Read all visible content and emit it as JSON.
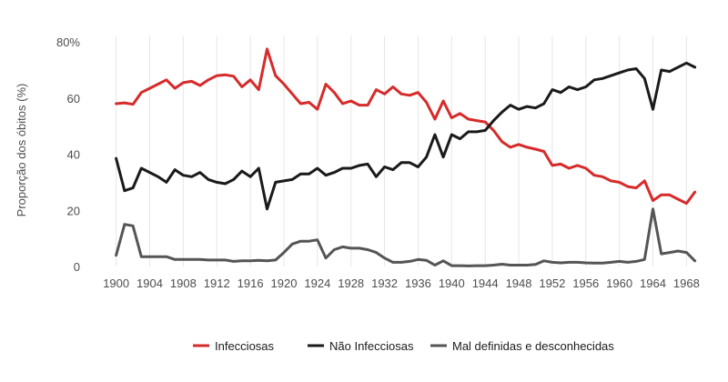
{
  "chart_data": {
    "type": "line",
    "title": "",
    "xlabel": "",
    "ylabel": "Proporção dos óbitos (%)",
    "xlim": [
      1897,
      1971
    ],
    "ylim": [
      0,
      82
    ],
    "x_ticks": [
      1900,
      1904,
      1908,
      1912,
      1916,
      1920,
      1924,
      1928,
      1932,
      1936,
      1940,
      1944,
      1948,
      1952,
      1956,
      1960,
      1964,
      1968
    ],
    "y_ticks": [
      {
        "value": 0,
        "label": "0"
      },
      {
        "value": 20,
        "label": "20"
      },
      {
        "value": 40,
        "label": "40"
      },
      {
        "value": 60,
        "label": "60"
      },
      {
        "value": 80,
        "label": "80%"
      }
    ],
    "grid": "vertical",
    "legend_position": "bottom",
    "x": [
      1900,
      1901,
      1902,
      1903,
      1904,
      1905,
      1906,
      1907,
      1908,
      1909,
      1910,
      1911,
      1912,
      1913,
      1914,
      1915,
      1916,
      1917,
      1918,
      1919,
      1920,
      1921,
      1922,
      1923,
      1924,
      1925,
      1926,
      1927,
      1928,
      1929,
      1930,
      1931,
      1932,
      1933,
      1934,
      1935,
      1936,
      1937,
      1938,
      1939,
      1940,
      1941,
      1942,
      1943,
      1944,
      1945,
      1946,
      1947,
      1948,
      1949,
      1950,
      1951,
      1952,
      1953,
      1954,
      1955,
      1956,
      1957,
      1958,
      1959,
      1960,
      1961,
      1962,
      1963,
      1964,
      1965,
      1966,
      1967,
      1968,
      1969
    ],
    "series": [
      {
        "name": "Infecciosas",
        "color": "#d62b2b",
        "values": [
          58,
          58.3,
          57.8,
          62,
          63.5,
          65,
          66.5,
          63.5,
          65.5,
          66,
          64.5,
          66.5,
          68,
          68.3,
          67.8,
          64,
          66.5,
          63,
          77.5,
          68,
          65,
          61.5,
          58,
          58.5,
          56,
          65,
          62,
          58,
          59,
          57.5,
          57.5,
          63,
          61.5,
          64,
          61.5,
          61,
          62,
          58.5,
          52.5,
          59,
          53,
          54.5,
          52.5,
          52,
          51.5,
          48.5,
          44.5,
          42.5,
          43.5,
          42.5,
          41.8,
          41,
          36,
          36.5,
          35,
          36,
          35,
          32.5,
          32,
          30.5,
          30,
          28.5,
          28,
          30.5,
          23.5,
          25.5,
          25.5,
          24,
          22.5,
          26.5
        ]
      },
      {
        "name": "Não Infecciosas",
        "color": "#1a1a1a",
        "values": [
          38.5,
          27,
          28,
          35,
          33.5,
          32,
          30,
          34.5,
          32.5,
          32,
          33.5,
          31,
          30,
          29.5,
          31,
          34,
          32,
          35,
          20.5,
          30,
          30.5,
          31,
          33,
          33,
          35,
          32.5,
          33.5,
          35,
          35,
          36,
          36.5,
          32,
          35.5,
          34.5,
          37,
          37,
          35.5,
          39,
          47,
          39,
          47,
          45.5,
          48,
          48,
          48.5,
          52,
          55,
          57.5,
          56,
          57,
          56.5,
          58,
          63,
          62,
          64,
          63,
          64,
          66.5,
          67,
          68,
          69,
          70,
          70.5,
          67,
          56,
          70,
          69.5,
          71,
          72.5,
          71
        ]
      },
      {
        "name": "Mal definidas e desconhecidas",
        "color": "#555555",
        "values": [
          4,
          15,
          14.5,
          3.5,
          3.5,
          3.5,
          3.5,
          2.5,
          2.5,
          2.5,
          2.5,
          2.3,
          2.3,
          2.3,
          1.8,
          2,
          2,
          2.2,
          2,
          2.3,
          5,
          8,
          9,
          9,
          9.5,
          3,
          6,
          7,
          6.5,
          6.5,
          6,
          5,
          3,
          1.5,
          1.5,
          1.8,
          2.5,
          2.2,
          0.5,
          2,
          0.3,
          0.3,
          0.2,
          0.3,
          0.3,
          0.5,
          0.8,
          0.5,
          0.5,
          0.5,
          0.7,
          2,
          1.5,
          1.3,
          1.5,
          1.5,
          1.3,
          1.2,
          1.2,
          1.5,
          1.8,
          1.5,
          1.8,
          2.5,
          20.5,
          4.5,
          5,
          5.5,
          5,
          2
        ]
      }
    ]
  }
}
